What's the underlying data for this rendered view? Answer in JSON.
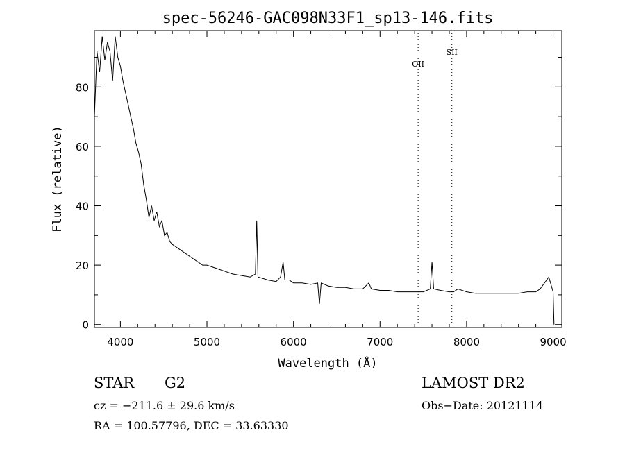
{
  "chart_data": {
    "type": "line",
    "title": "spec-56246-GAC098N33F1_sp13-146.fits",
    "xlabel": "Wavelength (Å)",
    "ylabel": "Flux (relative)",
    "xlim": [
      3700,
      9100
    ],
    "ylim": [
      -1,
      99
    ],
    "xticks": [
      4000,
      5000,
      6000,
      7000,
      8000,
      9000
    ],
    "yticks": [
      0,
      20,
      40,
      60,
      80
    ],
    "tick_labels_x": [
      "4000",
      "5000",
      "6000",
      "7000",
      "8000",
      "9000"
    ],
    "tick_labels_y": [
      "0",
      "20",
      "40",
      "60",
      "80"
    ],
    "grid": false,
    "series": [
      {
        "name": "",
        "x": [
          3700,
          3730,
          3760,
          3790,
          3820,
          3850,
          3880,
          3910,
          3940,
          3970,
          4000,
          4030,
          4060,
          4090,
          4120,
          4150,
          4180,
          4210,
          4240,
          4270,
          4300,
          4330,
          4360,
          4390,
          4420,
          4450,
          4480,
          4510,
          4540,
          4570,
          4600,
          4650,
          4700,
          4750,
          4800,
          4850,
          4900,
          4950,
          5000,
          5100,
          5200,
          5300,
          5400,
          5500,
          5560,
          5575,
          5590,
          5650,
          5700,
          5800,
          5850,
          5880,
          5900,
          5950,
          6000,
          6100,
          6200,
          6280,
          6300,
          6320,
          6400,
          6500,
          6600,
          6700,
          6800,
          6870,
          6900,
          7000,
          7100,
          7200,
          7300,
          7400,
          7500,
          7580,
          7600,
          7620,
          7700,
          7800,
          7850,
          7900,
          8000,
          8100,
          8200,
          8300,
          8400,
          8500,
          8600,
          8700,
          8800,
          8850,
          8900,
          8950,
          9000,
          9010
        ],
        "y": [
          70,
          92,
          85,
          97,
          89,
          95,
          92,
          82,
          97,
          90,
          87,
          82,
          78,
          74,
          70,
          66,
          61,
          58,
          54,
          47,
          42,
          36,
          40,
          35,
          38,
          33,
          35,
          30,
          31,
          28,
          27,
          26,
          25,
          24,
          23,
          22,
          21,
          20,
          20,
          19,
          18,
          17,
          16.5,
          16,
          17,
          35,
          16,
          15.5,
          15,
          14.5,
          16,
          21,
          15,
          15,
          14,
          14,
          13.5,
          14,
          7,
          14,
          13,
          12.5,
          12.5,
          12,
          12,
          14,
          12,
          11.5,
          11.5,
          11,
          11,
          11,
          11,
          12,
          21,
          12,
          11.5,
          11,
          11,
          12,
          11,
          10.5,
          10.5,
          10.5,
          10.5,
          10.5,
          10.5,
          11,
          11,
          12,
          14,
          16,
          11,
          0
        ]
      }
    ],
    "annotations": [
      {
        "label": "OII",
        "x": 7440
      },
      {
        "label": "SII",
        "x": 7830
      }
    ]
  },
  "footer": {
    "object_class": "STAR",
    "subclass": "G2",
    "survey": "LAMOST DR2",
    "cz": "cz = −211.6 ± 29.6 km/s",
    "obs_date": "Obs−Date: 20121114",
    "radec": "RA = 100.57796, DEC =  33.63330"
  },
  "colors": {
    "line": "#000000",
    "background": "#ffffff"
  }
}
